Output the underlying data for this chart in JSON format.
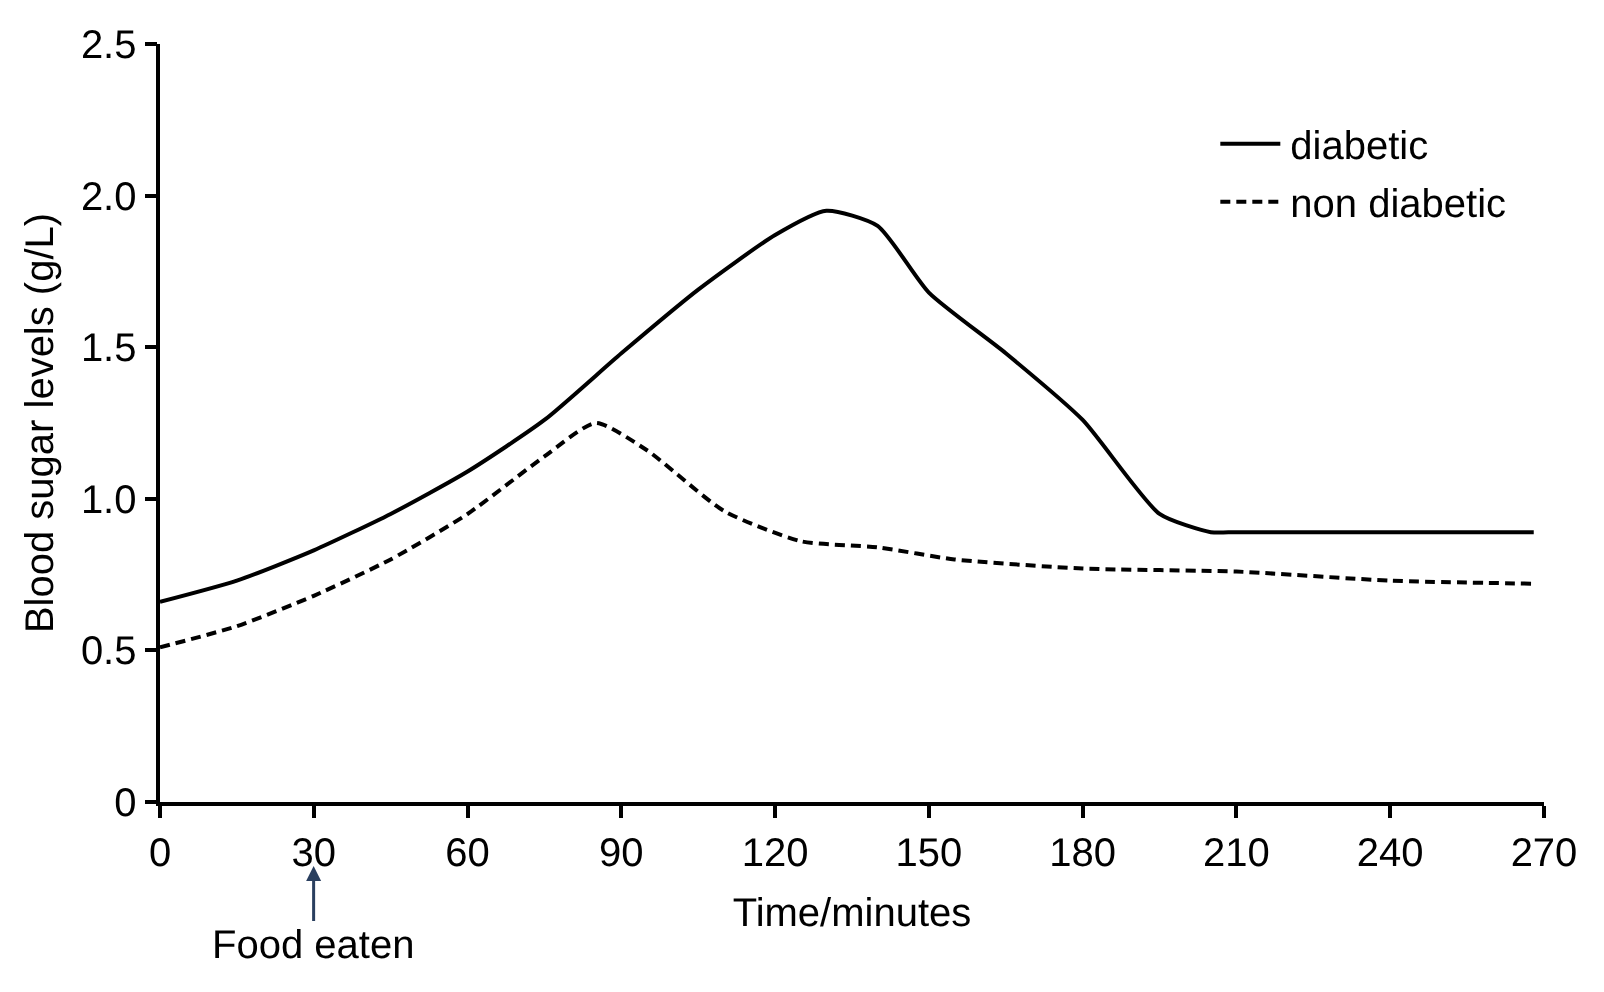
{
  "chart_data": {
    "type": "line",
    "xlabel": "Time/minutes",
    "ylabel": "Blood sugar levels (g/L)",
    "xlim": [
      0,
      270
    ],
    "xticks": [
      0,
      30,
      60,
      90,
      120,
      150,
      180,
      210,
      240,
      270
    ],
    "ylim": [
      0,
      2.5
    ],
    "yticks": [
      0,
      0.5,
      {
        "value": 1,
        "label": "1.0"
      },
      1.5,
      {
        "value": 2,
        "label": "2.0"
      },
      2.5
    ],
    "series": [
      {
        "name": "diabetic",
        "color": "#000000",
        "line_style": "solid",
        "x": [
          0,
          15,
          30,
          45,
          60,
          75,
          90,
          105,
          120,
          130,
          140,
          150,
          165,
          180,
          195,
          205,
          210,
          240,
          268
        ],
        "values": [
          0.66,
          0.73,
          0.83,
          0.95,
          1.09,
          1.26,
          1.48,
          1.69,
          1.87,
          1.95,
          1.9,
          1.68,
          1.48,
          1.26,
          0.95,
          0.89,
          0.89,
          0.89,
          0.89
        ]
      },
      {
        "name": "non diabetic",
        "color": "#000000",
        "line_style": "dashed",
        "x": [
          0,
          15,
          30,
          45,
          60,
          75,
          85,
          95,
          110,
          125,
          140,
          155,
          180,
          210,
          240,
          268
        ],
        "values": [
          0.51,
          0.58,
          0.68,
          0.8,
          0.95,
          1.14,
          1.25,
          1.16,
          0.96,
          0.86,
          0.84,
          0.8,
          0.77,
          0.76,
          0.73,
          0.72
        ]
      }
    ],
    "legend": "top right",
    "marker": "none",
    "annotations": [
      "Food eaten"
    ]
  }
}
